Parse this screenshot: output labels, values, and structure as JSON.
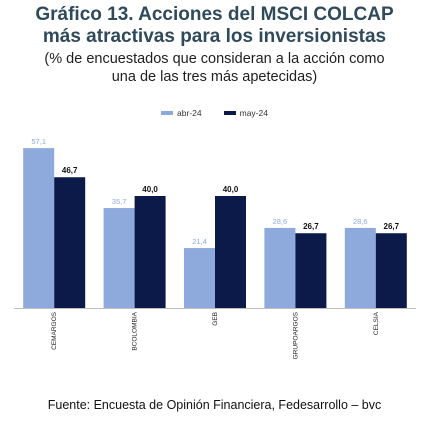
{
  "title_line1": "Gráfico 13. Acciones del MSCI COLCAP",
  "title_line2": "más atractivas para los inversionistas",
  "subtitle_line1": "(% de encuestados que consideran a la acción como",
  "subtitle_line2": "una de las tres más apetecidas)",
  "source": "Fuente: Encuesta de Opinión Financiera, Fedesarrollo – bvc",
  "colors": {
    "title": "#2f4a5a",
    "abr": "#8ea9db",
    "may": "#0c1a4a"
  },
  "chart_data": {
    "type": "bar",
    "categories": [
      "CEMARGOS",
      "BCOLOMBIA",
      "GEB",
      "GRUPOARGOS",
      "CELSIA"
    ],
    "series": [
      {
        "name": "abr-24",
        "values": [
          57.1,
          35.7,
          21.4,
          28.6,
          28.6
        ],
        "labels": [
          "57,1",
          "35,7",
          "21,4",
          "28,6",
          "28,6"
        ]
      },
      {
        "name": "may-24",
        "values": [
          46.7,
          40.0,
          40.0,
          26.7,
          26.7
        ],
        "labels": [
          "46,7",
          "40,0",
          "40,0",
          "26,7",
          "26,7"
        ]
      }
    ],
    "ylim": [
      0,
      60
    ],
    "legend": "top-center",
    "grid": false
  }
}
